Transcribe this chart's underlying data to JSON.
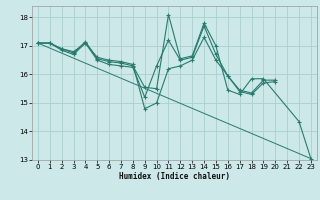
{
  "xlabel": "Humidex (Indice chaleur)",
  "bg_color": "#cce8e8",
  "grid_color": "#aad0d0",
  "line_color": "#2a7a6e",
  "xlim": [
    -0.5,
    23.5
  ],
  "ylim": [
    13,
    18.4
  ],
  "xticks": [
    0,
    1,
    2,
    3,
    4,
    5,
    6,
    7,
    8,
    9,
    10,
    11,
    12,
    13,
    14,
    15,
    16,
    17,
    18,
    19,
    20,
    21,
    22,
    23
  ],
  "yticks": [
    13,
    14,
    15,
    16,
    17,
    18
  ],
  "series": [
    {
      "x": [
        0,
        1,
        2,
        3,
        4,
        5,
        6,
        7,
        8,
        9,
        10,
        11,
        12,
        13,
        14,
        15,
        16,
        17,
        18,
        19,
        22,
        23
      ],
      "y": [
        17.1,
        17.1,
        16.9,
        16.75,
        17.15,
        16.55,
        16.45,
        16.4,
        16.3,
        15.55,
        15.5,
        18.1,
        16.55,
        16.65,
        17.8,
        17.0,
        15.45,
        15.3,
        15.85,
        15.85,
        14.35,
        13.05
      ],
      "marker": true,
      "trend": false
    },
    {
      "x": [
        0,
        1,
        2,
        3,
        4,
        5,
        6,
        7,
        8,
        9,
        10,
        11,
        12,
        13,
        14,
        15,
        16,
        17,
        18,
        19,
        20
      ],
      "y": [
        17.1,
        17.1,
        16.85,
        16.7,
        17.1,
        16.5,
        16.35,
        16.3,
        16.25,
        15.2,
        16.3,
        17.2,
        16.5,
        16.6,
        17.7,
        16.7,
        15.95,
        15.45,
        15.35,
        15.8,
        15.8
      ],
      "marker": true,
      "trend": false
    },
    {
      "x": [
        0,
        1,
        2,
        3,
        4,
        5,
        6,
        7,
        8,
        9,
        10,
        11,
        12,
        13,
        14,
        15,
        16,
        17,
        18,
        19,
        20
      ],
      "y": [
        17.1,
        17.1,
        16.9,
        16.8,
        17.1,
        16.6,
        16.5,
        16.45,
        16.35,
        14.8,
        15.0,
        16.2,
        16.3,
        16.5,
        17.3,
        16.5,
        15.95,
        15.4,
        15.3,
        15.7,
        15.75
      ],
      "marker": true,
      "trend": false
    },
    {
      "x": [
        0,
        23
      ],
      "y": [
        17.1,
        13.05
      ],
      "marker": false,
      "trend": true
    }
  ]
}
